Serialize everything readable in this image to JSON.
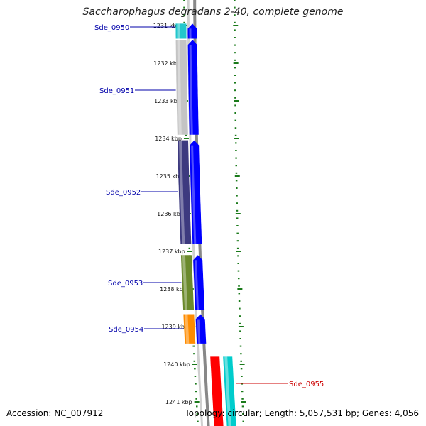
{
  "title": "Saccharophagus degradans 2-40, complete genome",
  "footer": {
    "accession": "Accession: NC_007912",
    "summary": "Topology: circular; Length: 5,057,531 bp; Genes: 4,056"
  },
  "ticks": [
    {
      "label": "1231 kbp",
      "kbp": 1231
    },
    {
      "label": "1232 kbp",
      "kbp": 1232
    },
    {
      "label": "1233 kbp",
      "kbp": 1233
    },
    {
      "label": "1234 kbp",
      "kbp": 1234
    },
    {
      "label": "1235 kbp",
      "kbp": 1235
    },
    {
      "label": "1236 kbp",
      "kbp": 1236
    },
    {
      "label": "1237 kbp",
      "kbp": 1237
    },
    {
      "label": "1238 kbp",
      "kbp": 1238
    },
    {
      "label": "1239 kbp",
      "kbp": 1239
    },
    {
      "label": "1240 kbp",
      "kbp": 1240
    },
    {
      "label": "1241 kbp",
      "kbp": 1241
    }
  ],
  "genes": [
    {
      "id": "Sde_0950",
      "start_kbp": 1230.95,
      "end_kbp": 1231.35,
      "color": "#22c7cc",
      "label_color": "#0000aa"
    },
    {
      "id": "Sde_0951",
      "start_kbp": 1231.38,
      "end_kbp": 1233.9,
      "color": "#c4c4c4",
      "label_color": "#0000aa"
    },
    {
      "id": "Sde_0952",
      "start_kbp": 1234.05,
      "end_kbp": 1236.8,
      "color": "#3d3a7f",
      "label_color": "#0000aa"
    },
    {
      "id": "Sde_0953",
      "start_kbp": 1237.1,
      "end_kbp": 1238.55,
      "color": "#6b8a2c",
      "label_color": "#0000aa"
    },
    {
      "id": "Sde_0954",
      "start_kbp": 1238.67,
      "end_kbp": 1239.45,
      "color": "#ff8c00",
      "label_color": "#0000aa"
    },
    {
      "id": "Sde_0955",
      "start_kbp": 1239.8,
      "end_kbp": 1241.7,
      "color": "#ff0000",
      "label_color": "#cc0000"
    }
  ],
  "cds": [
    {
      "strand": "forward",
      "start_kbp": 1230.95,
      "end_kbp": 1231.35,
      "color": "#0000ff"
    },
    {
      "strand": "forward",
      "start_kbp": 1231.38,
      "end_kbp": 1233.9,
      "color": "#0000ff"
    },
    {
      "strand": "forward",
      "start_kbp": 1234.05,
      "end_kbp": 1236.8,
      "color": "#0000ff"
    },
    {
      "strand": "forward",
      "start_kbp": 1237.1,
      "end_kbp": 1238.55,
      "color": "#0000ff"
    },
    {
      "strand": "forward",
      "start_kbp": 1238.67,
      "end_kbp": 1239.45,
      "color": "#0000ff"
    },
    {
      "strand": "reverse",
      "start_kbp": 1239.8,
      "end_kbp": 1241.7,
      "color": "#00cccc"
    }
  ],
  "colors": {
    "tick": "#1a7a1a",
    "backbone": "#888888",
    "text": "#222222"
  }
}
